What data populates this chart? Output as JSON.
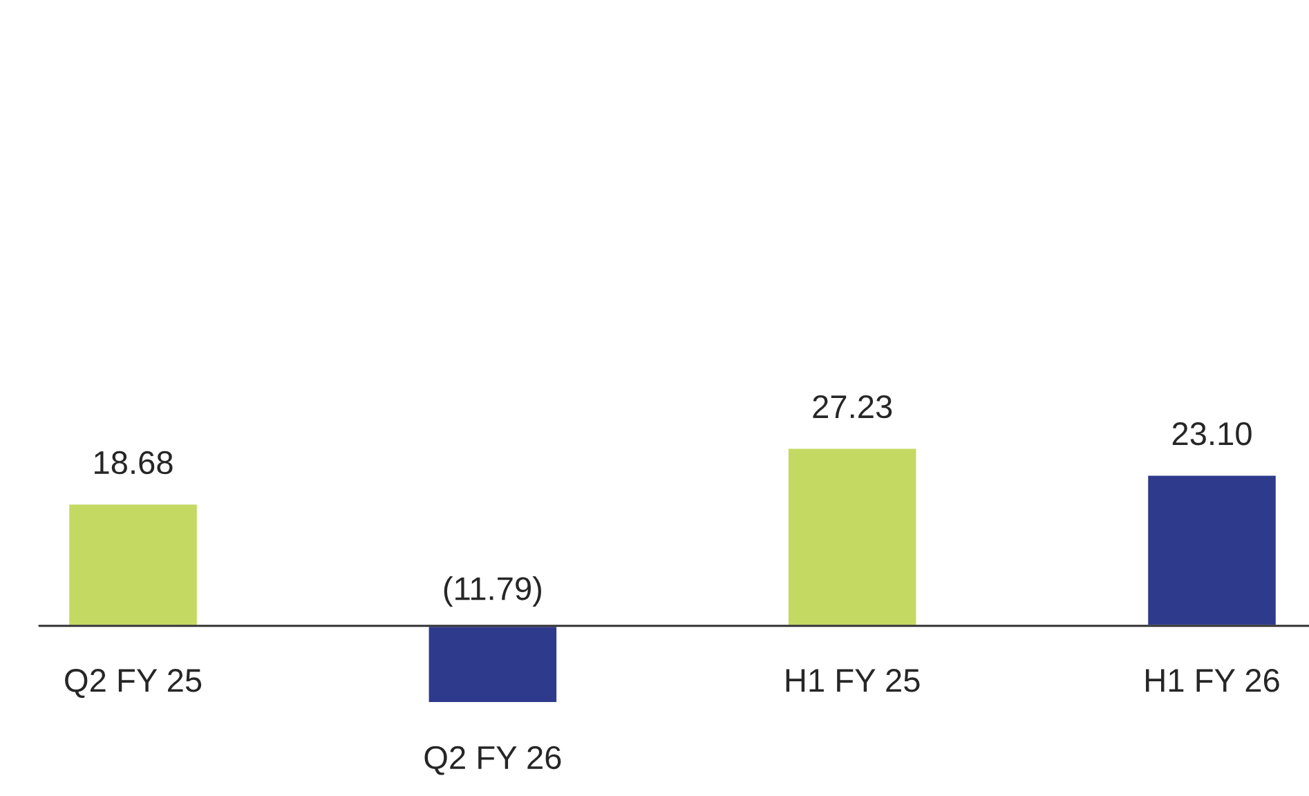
{
  "chart_data": {
    "type": "bar",
    "categories": [
      "Q2 FY 25",
      "Q2 FY 26",
      "H1 FY 25",
      "H1 FY 26"
    ],
    "values": [
      18.68,
      -11.79,
      27.23,
      23.1
    ],
    "colors": [
      "#c4d962",
      "#2e3a8c",
      "#c4d962",
      "#2e3a8c"
    ],
    "value_labels": [
      "18.68",
      "(11.79)",
      "27.23",
      "23.10"
    ]
  }
}
